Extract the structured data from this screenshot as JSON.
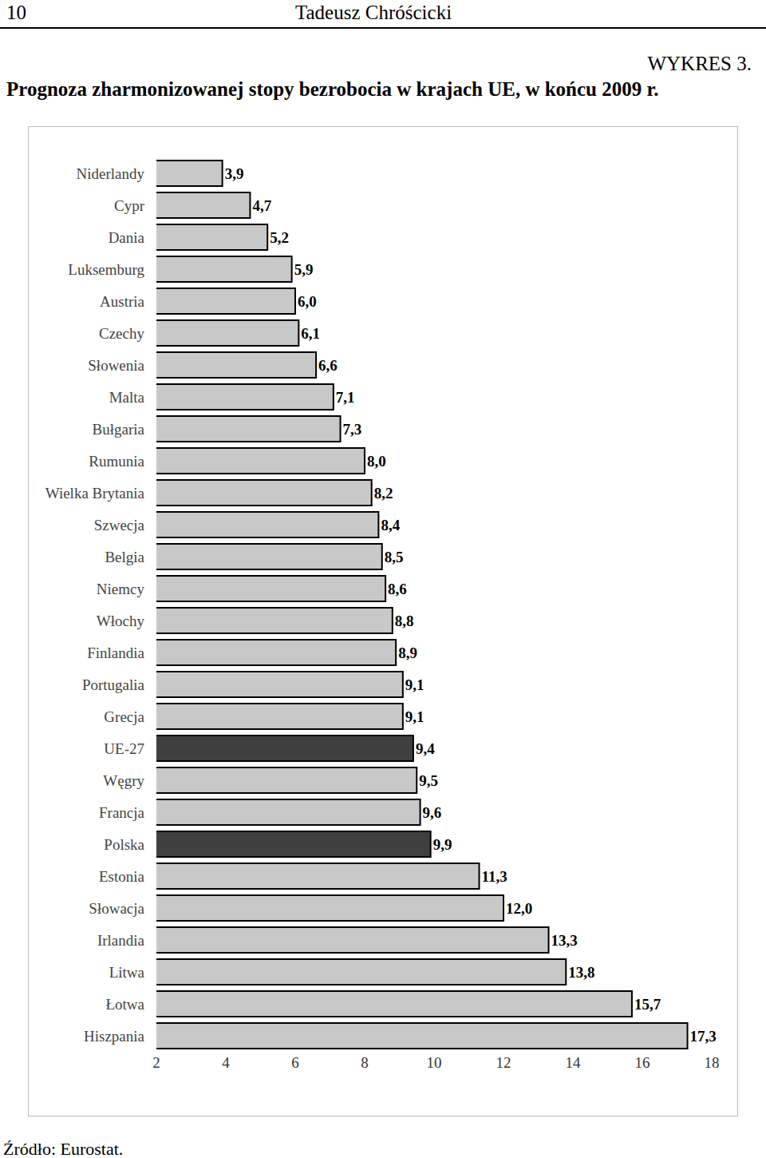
{
  "header": {
    "page_number": "10",
    "author": "Tadeusz Chróścicki"
  },
  "figure_label": "WYKRES 3.",
  "source": "Źródło: Eurostat.",
  "chart_data": {
    "type": "bar",
    "orientation": "horizontal",
    "title": "Prognoza zharmonizowanej stopy bezrobocia w krajach UE, w końcu 2009 r.",
    "categories": [
      "Niderlandy",
      "Cypr",
      "Dania",
      "Luksemburg",
      "Austria",
      "Czechy",
      "Słowenia",
      "Malta",
      "Bułgaria",
      "Rumunia",
      "Wielka Brytania",
      "Szwecja",
      "Belgia",
      "Niemcy",
      "Włochy",
      "Finlandia",
      "Portugalia",
      "Grecja",
      "UE-27",
      "Węgry",
      "Francja",
      "Polska",
      "Estonia",
      "Słowacja",
      "Irlandia",
      "Litwa",
      "Łotwa",
      "Hiszpania"
    ],
    "values": [
      3.9,
      4.7,
      5.2,
      5.9,
      6.0,
      6.1,
      6.6,
      7.1,
      7.3,
      8.0,
      8.2,
      8.4,
      8.5,
      8.6,
      8.8,
      8.9,
      9.1,
      9.1,
      9.4,
      9.5,
      9.6,
      9.9,
      11.3,
      12.0,
      13.3,
      13.8,
      15.7,
      17.3
    ],
    "value_labels": [
      "3,9",
      "4,7",
      "5,2",
      "5,9",
      "6,0",
      "6,1",
      "6,6",
      "7,1",
      "7,3",
      "8,0",
      "8,2",
      "8,4",
      "8,5",
      "8,6",
      "8,8",
      "8,9",
      "9,1",
      "9,1",
      "9,4",
      "9,5",
      "9,6",
      "9,9",
      "11,3",
      "12,0",
      "13,3",
      "13,8",
      "15,7",
      "17,3"
    ],
    "colors": [
      "#c8c8c8",
      "#c8c8c8",
      "#c8c8c8",
      "#c8c8c8",
      "#c8c8c8",
      "#c8c8c8",
      "#c8c8c8",
      "#c8c8c8",
      "#c8c8c8",
      "#c8c8c8",
      "#c8c8c8",
      "#c8c8c8",
      "#c8c8c8",
      "#c8c8c8",
      "#c8c8c8",
      "#c8c8c8",
      "#c8c8c8",
      "#c8c8c8",
      "#404040",
      "#c8c8c8",
      "#c8c8c8",
      "#404040",
      "#c8c8c8",
      "#c8c8c8",
      "#c8c8c8",
      "#c8c8c8",
      "#c8c8c8",
      "#c8c8c8"
    ],
    "xlim": [
      2,
      18
    ],
    "xticks": [
      2,
      4,
      6,
      8,
      10,
      12,
      14,
      16,
      18
    ],
    "data_labels": true,
    "grid": false
  }
}
